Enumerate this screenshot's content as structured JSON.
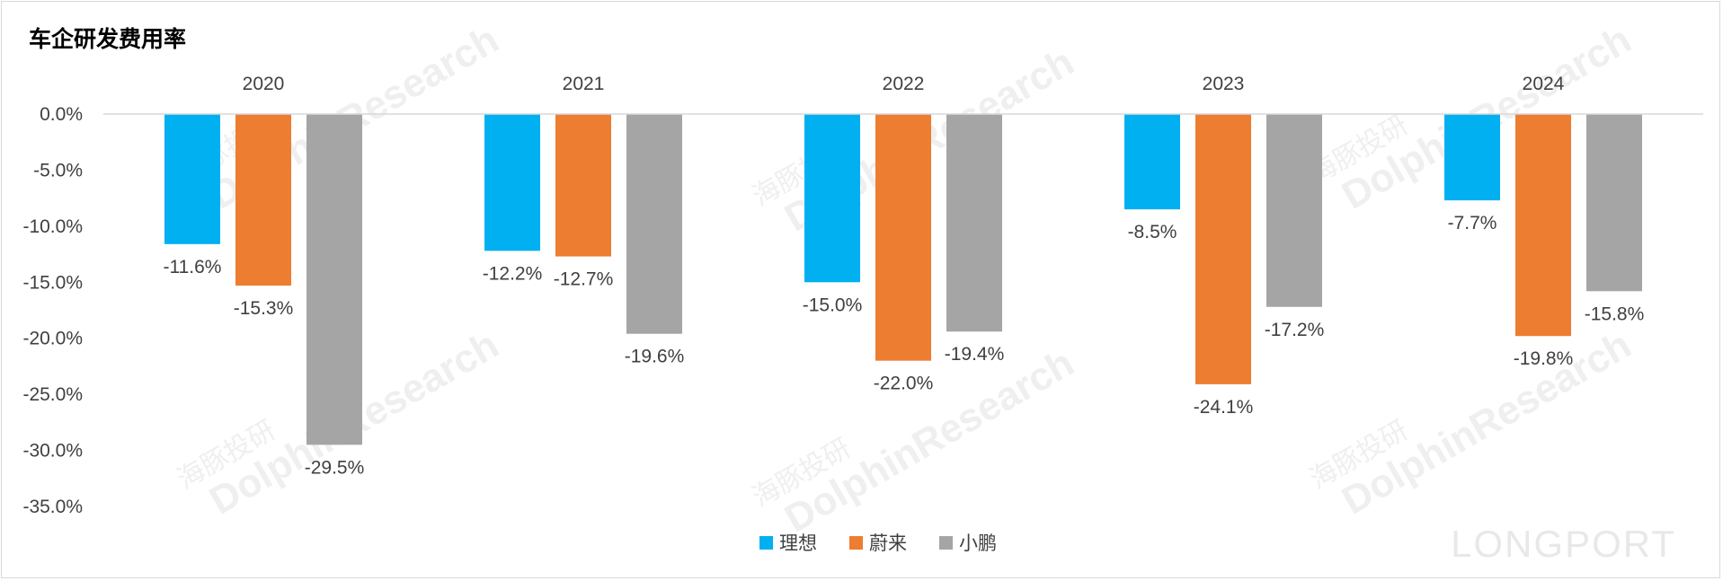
{
  "chart_data": {
    "type": "bar",
    "title": "车企研发费用率",
    "categories": [
      "2020",
      "2021",
      "2022",
      "2023",
      "2024"
    ],
    "series": [
      {
        "name": "理想",
        "color": "#00B0F0",
        "values": [
          -11.6,
          -12.2,
          -15.0,
          -8.5,
          -7.7
        ],
        "labels": [
          "-11.6%",
          "-12.2%",
          "-15.0%",
          "-8.5%",
          "-7.7%"
        ]
      },
      {
        "name": "蔚来",
        "color": "#ED7D31",
        "values": [
          -15.3,
          -12.7,
          -22.0,
          -24.1,
          -19.8
        ],
        "labels": [
          "-15.3%",
          "-12.7%",
          "-22.0%",
          "-24.1%",
          "-19.8%"
        ]
      },
      {
        "name": "小鹏",
        "color": "#A5A5A5",
        "values": [
          -29.5,
          -19.6,
          -19.4,
          -17.2,
          -15.8
        ],
        "labels": [
          "-29.5%",
          "-19.6%",
          "-19.4%",
          "-17.2%",
          "-15.8%"
        ]
      }
    ],
    "ylim": [
      -35,
      0
    ],
    "yticks": [
      0,
      -5,
      -10,
      -15,
      -20,
      -25,
      -30,
      -35
    ],
    "ytick_labels": [
      "0.0%",
      "-5.0%",
      "-10.0%",
      "-15.0%",
      "-20.0%",
      "-25.0%",
      "-30.0%",
      "-35.0%"
    ],
    "xlabel": "",
    "ylabel": "",
    "grid": false,
    "legend": "bottom-center",
    "category_labels_position": "top"
  },
  "watermark": {
    "brand_cn": "海豚投研",
    "brand_en": "DolphinResearch",
    "corner": "LONGPORT"
  }
}
